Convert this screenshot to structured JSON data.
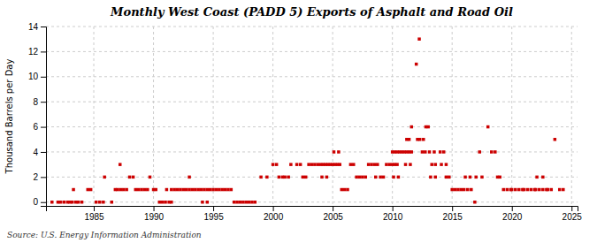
{
  "chart_data": {
    "type": "scatter",
    "title": "Monthly West Coast (PADD 5) Exports of Asphalt and Road Oil",
    "ylabel": "Thousand Barrels per Day",
    "source": "Source: U.S. Energy Information Administration",
    "color": "#cc0000",
    "marker": "square",
    "grid": true,
    "xlim": [
      1981.0,
      2025.5
    ],
    "ylim": [
      -0.3,
      14
    ],
    "xticks": [
      1985,
      1990,
      1995,
      2000,
      2005,
      2010,
      2015,
      2020,
      2025
    ],
    "yticks": [
      0,
      2,
      4,
      6,
      8,
      10,
      12,
      14
    ],
    "x": [
      1981.5,
      1982.0,
      1982.2,
      1982.5,
      1982.8,
      1983.0,
      1983.2,
      1983.5,
      1983.7,
      1984.0,
      1983.3,
      1984.5,
      1984.75,
      1985.2,
      1985.5,
      1985.8,
      1985.9,
      1986.5,
      1986.8,
      1987.0,
      1987.25,
      1987.5,
      1987.75,
      1987.2,
      1988.0,
      1988.3,
      1988.5,
      1988.75,
      1989.0,
      1989.25,
      1989.5,
      1989.7,
      1990.0,
      1990.2,
      1990.5,
      1990.75,
      1991.0,
      1991.3,
      1991.5,
      1991.1,
      1991.5,
      1991.75,
      1992.0,
      1992.25,
      1992.5,
      1992.75,
      1993.0,
      1993.25,
      1993.5,
      1993.75,
      1993.0,
      1994.0,
      1994.25,
      1994.5,
      1994.75,
      1994.1,
      1994.5,
      1995.0,
      1995.25,
      1995.5,
      1995.75,
      1996.0,
      1996.25,
      1996.5,
      1996.75,
      1997.0,
      1997.25,
      1997.5,
      1997.75,
      1998.0,
      1998.25,
      1998.5,
      1999.0,
      1999.5,
      2000.0,
      2000.3,
      2000.5,
      2000.8,
      2001.0,
      2001.3,
      2001.5,
      2002.0,
      2002.3,
      2002.5,
      2002.75,
      2003.0,
      2003.25,
      2003.5,
      2003.75,
      2004.0,
      2004.2,
      2004.4,
      2004.6,
      2004.8,
      2004.1,
      2004.5,
      2005.0,
      2005.2,
      2005.4,
      2005.6,
      2005.1,
      2005.5,
      2005.75,
      2006.0,
      2006.25,
      2006.5,
      2006.75,
      2007.0,
      2007.25,
      2007.5,
      2007.75,
      2008.0,
      2008.25,
      2008.5,
      2008.75,
      2008.6,
      2009.0,
      2009.25,
      2009.5,
      2009.75,
      2010.0,
      2010.2,
      2010.4,
      2010.0,
      2010.2,
      2010.4,
      2010.6,
      2010.8,
      2010.1,
      2010.5,
      2011.0,
      2011.2,
      2011.4,
      2011.6,
      2011.1,
      2011.5,
      2011.2,
      2011.4,
      2011.6,
      2012.0,
      2012.25,
      2012.5,
      2012.75,
      2012.1,
      2012.3,
      2012.6,
      2012.8,
      2013.0,
      2013.3,
      2013.6,
      2013.1,
      2013.5,
      2013.2,
      2013.6,
      2014.0,
      2014.3,
      2014.5,
      2014.75,
      2014.1,
      2014.5,
      2015.0,
      2015.25,
      2015.5,
      2015.75,
      2016.0,
      2016.3,
      2016.6,
      2016.1,
      2016.5,
      2017.0,
      2017.5,
      2017.3,
      2018.0,
      2018.3,
      2018.6,
      2018.8,
      2019.0,
      2019.3,
      2019.6,
      2019.9,
      2020.0,
      2020.3,
      2020.6,
      2020.9,
      2021.0,
      2021.3,
      2021.6,
      2021.9,
      2022.0,
      2022.3,
      2022.6,
      2022.9,
      2022.1,
      2022.6,
      2023.0,
      2023.3,
      2023.6,
      2024.0,
      2024.3,
      2016.9
    ],
    "values": [
      0,
      0,
      0,
      0,
      0,
      0,
      0,
      0,
      0,
      0,
      1,
      1,
      1,
      0,
      0,
      0,
      2,
      0,
      1,
      1,
      1,
      1,
      1,
      3,
      2,
      2,
      1,
      1,
      1,
      1,
      1,
      2,
      1,
      1,
      0,
      0,
      0,
      0,
      0,
      1,
      1,
      1,
      1,
      1,
      1,
      1,
      1,
      1,
      1,
      1,
      2,
      1,
      1,
      1,
      1,
      0,
      0,
      1,
      1,
      1,
      1,
      1,
      1,
      1,
      0,
      0,
      0,
      0,
      0,
      0,
      0,
      0,
      2,
      2,
      3,
      3,
      2,
      2,
      2,
      2,
      3,
      3,
      3,
      2,
      2,
      3,
      3,
      3,
      3,
      3,
      3,
      3,
      3,
      3,
      2,
      2,
      3,
      3,
      3,
      3,
      4,
      4,
      1,
      1,
      1,
      3,
      3,
      2,
      2,
      2,
      2,
      3,
      3,
      3,
      3,
      2,
      2,
      2,
      3,
      3,
      3,
      3,
      3,
      4,
      4,
      4,
      4,
      4,
      2,
      2,
      4,
      4,
      4,
      4,
      3,
      3,
      5,
      5,
      6,
      11,
      13,
      4,
      4,
      5,
      5,
      5,
      6,
      6,
      3,
      3,
      4,
      4,
      2,
      2,
      4,
      4,
      2,
      2,
      3,
      3,
      1,
      1,
      1,
      1,
      1,
      1,
      1,
      2,
      2,
      2,
      2,
      4,
      6,
      4,
      4,
      2,
      2,
      1,
      1,
      1,
      1,
      1,
      1,
      1,
      1,
      1,
      1,
      1,
      1,
      1,
      1,
      1,
      2,
      2,
      1,
      1,
      5,
      1,
      1,
      0
    ]
  }
}
